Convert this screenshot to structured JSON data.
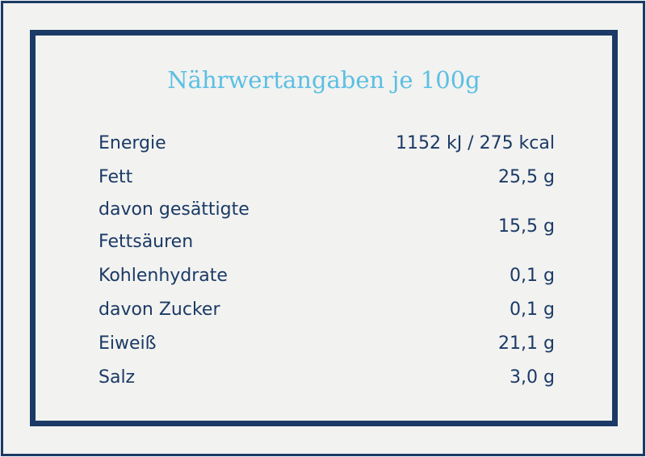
{
  "title": "Nährwertangaben je 100g",
  "table": {
    "rows": [
      [
        "Energie",
        "1152 kJ / 275 kcal"
      ],
      [
        "Fett",
        "25,5 g"
      ],
      [
        "davon gesättigte Fettsäuren",
        "15,5 g"
      ],
      [
        "Kohlenhydrate",
        "0,1 g"
      ],
      [
        "davon Zucker",
        "0,1 g"
      ],
      [
        "Eiweiß",
        "21,1 g"
      ],
      [
        "Salz",
        "3,0 g"
      ]
    ]
  }
}
